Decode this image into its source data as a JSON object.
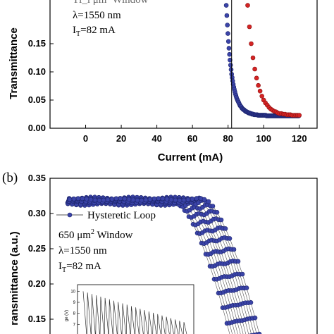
{
  "panel_a": {
    "wavelength": "λ=1550 nm",
    "threshold_prefix": "I",
    "threshold_sub": "T",
    "threshold_value": "=82 mA",
    "truncated_line": "Tl_l μm² Window",
    "xlabel": "Current (mA)",
    "ylabel": "Transmittance"
  },
  "panel_b": {
    "label": "(b)",
    "legend": "Hysteretic Loop",
    "window_prefix": "650 μm",
    "window_sup": "2",
    "window_suffix": " Window",
    "wavelength": "λ=1550 nm",
    "threshold_prefix": "I",
    "threshold_sub": "T",
    "threshold_value": "=82 mA",
    "ylabel": "ransmittance (a.u.)",
    "inset_ylabel": "ge (V)"
  },
  "colors": {
    "blue": "#3b44a8",
    "red": "#d42424",
    "axis": "#000000",
    "inset_line": "#333333"
  },
  "chart_data": [
    {
      "type": "scatter",
      "xlabel": "Current (mA)",
      "ylabel": "Transmittance",
      "xlim": [
        -20,
        130
      ],
      "ylim": [
        0.0,
        0.23
      ],
      "xticks": [
        0,
        20,
        40,
        60,
        80,
        100,
        120
      ],
      "yticks": [
        0.0,
        0.05,
        0.1,
        0.15
      ],
      "ytick_labels": [
        "0.00",
        "0.05",
        "0.10",
        "0.15"
      ],
      "threshold_line_x": 82,
      "series": [
        {
          "color": "blue",
          "x": [
            79.0,
            79.3,
            79.6,
            79.9,
            80.2,
            80.5,
            80.8,
            81.1,
            81.4,
            81.7,
            82.0,
            82.3,
            82.6,
            82.9,
            83.2,
            83.5,
            83.8,
            84.1,
            84.4,
            84.7,
            85.0,
            85.3,
            85.6,
            85.9,
            86.2,
            86.5,
            86.8,
            87.1,
            87.4,
            87.7,
            88.0,
            88.3,
            88.6,
            88.9,
            89.2,
            89.5,
            89.8,
            90.1,
            90.4,
            90.7,
            91.0,
            91.3,
            91.6,
            91.9,
            92.2,
            92.5,
            92.8,
            93.1,
            93.4,
            93.7,
            94.0,
            94.3,
            94.6,
            94.9,
            95.2,
            95.5,
            95.8,
            96.1,
            96.4,
            96.7,
            97.0,
            97.3,
            97.6,
            97.9,
            98.2,
            98.5,
            98.8,
            99.1,
            99.4,
            99.7,
            100.0,
            100.3,
            100.6,
            100.9,
            101.2,
            101.5,
            101.8,
            102.1,
            102.4,
            102.7,
            103.0,
            103.3,
            103.6,
            103.9,
            104.2,
            104.5,
            104.8,
            105.1,
            105.4,
            105.7,
            106.0,
            106.3,
            106.6,
            106.9,
            107.2,
            107.5,
            107.8,
            108.1,
            108.4,
            108.7,
            109.0,
            109.3,
            109.6,
            109.9,
            110.2,
            110.5,
            110.8,
            111.1,
            111.4,
            111.7,
            112.0,
            112.3,
            112.6,
            112.9,
            113.2,
            113.5,
            113.8,
            114.1,
            114.4,
            114.7,
            115.0,
            115.3,
            115.6,
            115.9,
            116.2,
            116.5,
            116.8,
            117.1,
            117.4,
            117.7,
            118.0,
            118.3,
            118.6,
            118.9,
            119.2,
            119.5,
            119.8
          ],
          "y": [
            0.218,
            0.2,
            0.183,
            0.168,
            0.154,
            0.142,
            0.131,
            0.121,
            0.112,
            0.104,
            0.096,
            0.09,
            0.084,
            0.078,
            0.073,
            0.069,
            0.065,
            0.061,
            0.058,
            0.055,
            0.052,
            0.05,
            0.048,
            0.046,
            0.044,
            0.042,
            0.04,
            0.039,
            0.038,
            0.036,
            0.035,
            0.034,
            0.033,
            0.033,
            0.032,
            0.031,
            0.03,
            0.03,
            0.029,
            0.029,
            0.028,
            0.028,
            0.027,
            0.027,
            0.027,
            0.026,
            0.026,
            0.026,
            0.025,
            0.025,
            0.025,
            0.025,
            0.024,
            0.024,
            0.024,
            0.024,
            0.024,
            0.024,
            0.024,
            0.023,
            0.023,
            0.023,
            0.023,
            0.023,
            0.023,
            0.023,
            0.023,
            0.023,
            0.023,
            0.023,
            0.023,
            0.023,
            0.023,
            0.023,
            0.023,
            0.022,
            0.022,
            0.022,
            0.022,
            0.022,
            0.022,
            0.022,
            0.022,
            0.022,
            0.022,
            0.022,
            0.022,
            0.022,
            0.022,
            0.022,
            0.022,
            0.022,
            0.022,
            0.022,
            0.022,
            0.022,
            0.022,
            0.022,
            0.022,
            0.022,
            0.022,
            0.022,
            0.022,
            0.022,
            0.022,
            0.022,
            0.022,
            0.022,
            0.022,
            0.022,
            0.022,
            0.022,
            0.022,
            0.022,
            0.022,
            0.022,
            0.022,
            0.022,
            0.022,
            0.022,
            0.022,
            0.022,
            0.022,
            0.022,
            0.022,
            0.022,
            0.022,
            0.022,
            0.022,
            0.022,
            0.022,
            0.022,
            0.022,
            0.022,
            0.022,
            0.022,
            0.022
          ]
        },
        {
          "color": "red",
          "x": [
            91.0,
            92.0,
            93.0,
            94.0,
            95.0,
            96.0,
            97.0,
            98.0,
            99.0,
            100.0,
            101.0,
            102.0,
            103.0,
            104.0,
            105.0,
            106.0,
            107.0,
            108.0,
            109.0,
            110.0,
            111.0,
            112.0,
            113.0,
            114.0,
            115.0,
            116.0,
            117.0,
            118.0,
            119.0,
            120.0
          ],
          "y": [
            0.218,
            0.18,
            0.15,
            0.125,
            0.105,
            0.089,
            0.076,
            0.066,
            0.057,
            0.05,
            0.045,
            0.041,
            0.037,
            0.034,
            0.032,
            0.03,
            0.029,
            0.027,
            0.026,
            0.026,
            0.025,
            0.025,
            0.024,
            0.024,
            0.024,
            0.023,
            0.023,
            0.023,
            0.023,
            0.023
          ]
        }
      ]
    },
    {
      "type": "line",
      "ylabel": "ransmittance (a.u.)",
      "ylim": [
        0.12,
        0.35
      ],
      "yticks": [
        0.15,
        0.2,
        0.25,
        0.3,
        0.35
      ],
      "ytick_labels": [
        "0.15",
        "0.20",
        "0.25",
        "0.30",
        "0.35"
      ],
      "series": [
        {
          "name": "Hysteretic Loop",
          "color": "blue",
          "sweeps": 12
        }
      ]
    },
    {
      "type": "line",
      "ylabel": "ge (V)",
      "ylim": [
        6,
        10.6
      ],
      "yticks": [
        7,
        8,
        9,
        10
      ],
      "ytick_labels": [
        "7",
        "8",
        "9",
        "10"
      ],
      "oscillations": 24,
      "start_peak": 10,
      "end_peak": 7.2
    }
  ]
}
